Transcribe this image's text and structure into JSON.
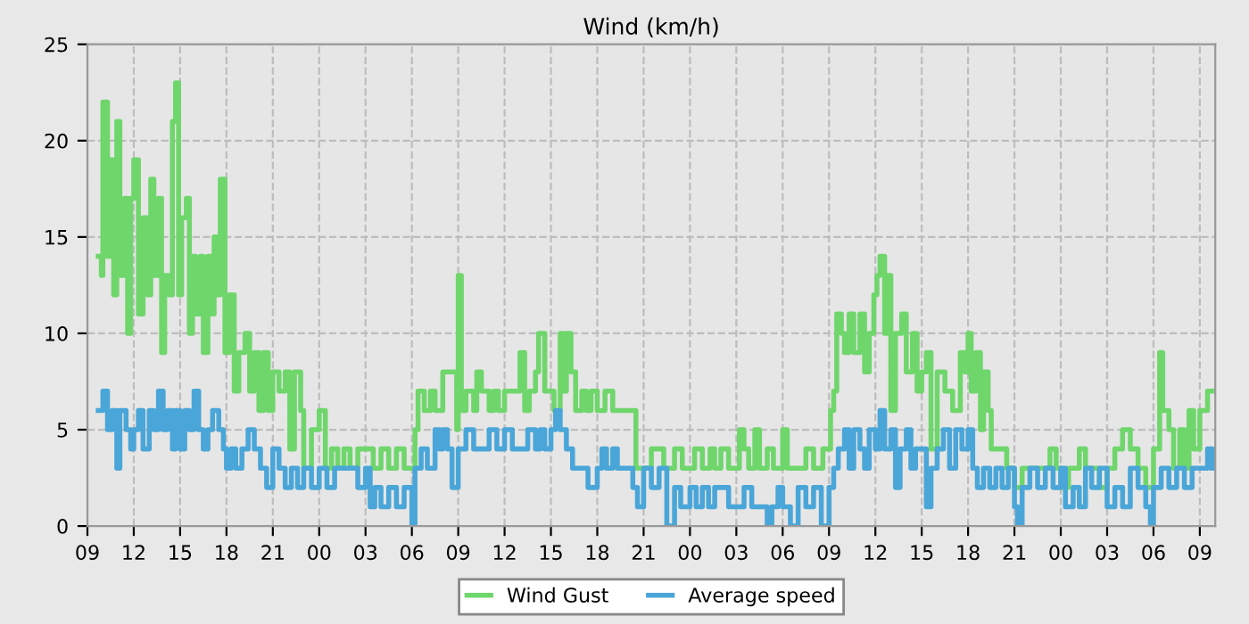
{
  "chart_data": {
    "type": "step",
    "title": "Wind (km/h)",
    "xlim": [
      9,
      82
    ],
    "ylim": [
      0,
      25
    ],
    "yticks": [
      0,
      5,
      10,
      15,
      20,
      25
    ],
    "xticks": [
      {
        "value": 9,
        "label": "09"
      },
      {
        "value": 12,
        "label": "12"
      },
      {
        "value": 15,
        "label": "15"
      },
      {
        "value": 18,
        "label": "18"
      },
      {
        "value": 21,
        "label": "21"
      },
      {
        "value": 24,
        "label": "00"
      },
      {
        "value": 27,
        "label": "03"
      },
      {
        "value": 30,
        "label": "06"
      },
      {
        "value": 33,
        "label": "09"
      },
      {
        "value": 36,
        "label": "12"
      },
      {
        "value": 39,
        "label": "15"
      },
      {
        "value": 42,
        "label": "18"
      },
      {
        "value": 45,
        "label": "21"
      },
      {
        "value": 48,
        "label": "00"
      },
      {
        "value": 51,
        "label": "03"
      },
      {
        "value": 54,
        "label": "06"
      },
      {
        "value": 57,
        "label": "09"
      },
      {
        "value": 60,
        "label": "12"
      },
      {
        "value": 63,
        "label": "15"
      },
      {
        "value": 66,
        "label": "18"
      },
      {
        "value": 69,
        "label": "21"
      },
      {
        "value": 72,
        "label": "00"
      },
      {
        "value": 75,
        "label": "03"
      },
      {
        "value": 78,
        "label": "06"
      },
      {
        "value": 81,
        "label": "09"
      }
    ],
    "grid": true,
    "legend": "bottom",
    "series": [
      {
        "name": "Wind Gust",
        "color": "#6fd66c",
        "x": [
          9.7,
          9.9,
          10.0,
          10.3,
          10.5,
          10.7,
          10.9,
          11.1,
          11.4,
          11.6,
          11.8,
          12.0,
          12.3,
          12.6,
          12.9,
          13.1,
          13.3,
          13.6,
          13.8,
          14.0,
          14.3,
          14.5,
          14.7,
          14.9,
          15.1,
          15.4,
          15.6,
          15.8,
          16.0,
          16.3,
          16.5,
          16.8,
          17.0,
          17.2,
          17.4,
          17.6,
          17.9,
          18.2,
          18.5,
          18.8,
          19.2,
          19.5,
          19.8,
          20.1,
          20.4,
          20.7,
          21.0,
          21.4,
          21.8,
          22.1,
          22.4,
          22.8,
          23.0,
          23.5,
          24.0,
          24.4,
          24.8,
          25.2,
          25.6,
          26.0,
          26.5,
          27.0,
          27.5,
          28.0,
          28.5,
          29.0,
          29.5,
          30.0,
          30.2,
          30.4,
          30.8,
          31.2,
          31.5,
          32.0,
          32.5,
          32.9,
          33.0,
          33.2,
          33.5,
          34.0,
          34.2,
          34.5,
          35.0,
          35.3,
          35.6,
          36.0,
          36.5,
          37.0,
          37.3,
          37.6,
          38.0,
          38.2,
          38.6,
          39.0,
          39.2,
          39.6,
          39.8,
          40.0,
          40.3,
          40.6,
          41.0,
          41.3,
          41.6,
          42.0,
          42.5,
          43.0,
          44.0,
          44.5,
          45.0,
          45.5,
          46.0,
          46.3,
          47.0,
          47.5,
          48.0,
          48.3,
          48.8,
          49.3,
          49.6,
          50.0,
          50.5,
          51.2,
          51.5,
          51.8,
          52.2,
          52.5,
          53.0,
          53.4,
          54.0,
          54.3,
          55.0,
          55.5,
          56.0,
          56.6,
          57.0,
          57.1,
          57.3,
          57.5,
          57.8,
          58.0,
          58.3,
          58.6,
          59.0,
          59.3,
          59.6,
          59.9,
          60.1,
          60.3,
          60.6,
          60.8,
          61.0,
          61.3,
          61.7,
          62.0,
          62.4,
          62.7,
          63.0,
          63.3,
          63.6,
          64.0,
          64.5,
          65.0,
          65.5,
          65.8,
          66.0,
          66.2,
          66.5,
          66.8,
          67.0,
          67.3,
          67.5,
          68.0,
          68.5,
          69.0,
          69.5,
          70.0,
          71.0,
          71.3,
          71.7,
          72.0,
          72.5,
          73.2,
          73.6,
          74.0,
          74.5,
          75.0,
          75.5,
          76.0,
          76.5,
          77.0,
          77.5,
          78.0,
          78.4,
          78.6,
          79.0,
          79.3,
          79.7,
          80.0,
          80.3,
          80.6,
          81.0,
          81.5,
          81.8
        ],
        "values": [
          14,
          13,
          22,
          14,
          19,
          12,
          21,
          13,
          17,
          10,
          17,
          19,
          11,
          16,
          12,
          18,
          13,
          17,
          9,
          13,
          12,
          21,
          23,
          12,
          16,
          17,
          10,
          14,
          11,
          14,
          9,
          14,
          11,
          15,
          12,
          18,
          9,
          12,
          7,
          9,
          10,
          7,
          9,
          6,
          9,
          6,
          8,
          7,
          8,
          4,
          8,
          6,
          3,
          5,
          6,
          3,
          4,
          3,
          4,
          3,
          4,
          4,
          3,
          4,
          3,
          4,
          3,
          3,
          5,
          7,
          6,
          7,
          6,
          8,
          8,
          5,
          13,
          6,
          7,
          6,
          8,
          7,
          6,
          7,
          6,
          7,
          7,
          9,
          6,
          7,
          8,
          10,
          7,
          7,
          6,
          10,
          7,
          10,
          8,
          6,
          7,
          6,
          7,
          6,
          7,
          6,
          6,
          3,
          3,
          4,
          4,
          3,
          4,
          3,
          3,
          4,
          3,
          4,
          3,
          4,
          3,
          5,
          4,
          3,
          5,
          3,
          4,
          3,
          5,
          3,
          3,
          4,
          3,
          4,
          4,
          6,
          7,
          11,
          10,
          9,
          11,
          9,
          11,
          8,
          10,
          12,
          13,
          14,
          10,
          13,
          6,
          10,
          11,
          8,
          10,
          7,
          8,
          9,
          4,
          8,
          7,
          6,
          9,
          8,
          10,
          7,
          9,
          5,
          8,
          6,
          4,
          4,
          3,
          2,
          3,
          3,
          3,
          4,
          3,
          2,
          3,
          4,
          3,
          3,
          2,
          3,
          4,
          5,
          4,
          3,
          2,
          4,
          9,
          6,
          5,
          3,
          5,
          3,
          6,
          4,
          6,
          7,
          7
        ]
      },
      {
        "name": "Average speed",
        "color": "#4aa6d8",
        "x": [
          9.7,
          10.0,
          10.3,
          10.6,
          10.9,
          11.1,
          11.5,
          11.8,
          12.0,
          12.3,
          12.6,
          13.0,
          13.3,
          13.6,
          13.9,
          14.2,
          14.5,
          14.7,
          15.0,
          15.3,
          15.6,
          15.9,
          16.2,
          16.5,
          16.8,
          17.1,
          17.5,
          17.8,
          18.0,
          18.3,
          18.6,
          19.0,
          19.4,
          19.8,
          20.2,
          20.6,
          21.0,
          21.4,
          21.8,
          22.2,
          22.6,
          23.0,
          23.5,
          24.0,
          24.5,
          25.0,
          25.5,
          26.0,
          26.5,
          27.0,
          27.3,
          27.6,
          28.0,
          28.5,
          29.0,
          29.5,
          30.0,
          30.2,
          30.6,
          31.0,
          31.5,
          31.8,
          32.0,
          32.3,
          32.6,
          33.0,
          33.5,
          34.0,
          34.6,
          35.0,
          35.5,
          36.0,
          36.5,
          37.0,
          37.5,
          38.0,
          38.3,
          38.6,
          39.0,
          39.3,
          39.6,
          40.0,
          40.4,
          41.0,
          41.4,
          42.0,
          42.3,
          42.6,
          43.0,
          43.3,
          44.0,
          44.3,
          44.6,
          45.0,
          45.5,
          46.0,
          46.5,
          47.0,
          47.4,
          48.0,
          48.4,
          48.8,
          49.2,
          49.6,
          50.0,
          50.5,
          51.0,
          51.5,
          52.0,
          52.5,
          53.0,
          53.3,
          53.7,
          54.0,
          54.5,
          55.0,
          55.5,
          56.0,
          56.5,
          57.0,
          57.3,
          57.6,
          58.0,
          58.3,
          58.6,
          59.0,
          59.3,
          59.6,
          60.0,
          60.3,
          60.6,
          61.0,
          61.3,
          61.6,
          62.0,
          62.3,
          62.6,
          63.0,
          63.3,
          63.6,
          64.0,
          64.4,
          64.8,
          65.2,
          65.6,
          66.0,
          66.3,
          66.6,
          67.0,
          67.4,
          67.8,
          68.2,
          68.6,
          69.0,
          69.2,
          69.5,
          70.0,
          70.5,
          71.0,
          71.5,
          72.0,
          72.3,
          72.8,
          73.2,
          73.6,
          74.0,
          74.5,
          75.0,
          75.5,
          76.0,
          76.5,
          77.0,
          77.5,
          77.8,
          78.0,
          78.5,
          79.0,
          79.5,
          80.0,
          80.5,
          81.0,
          81.5,
          81.8
        ],
        "values": [
          6,
          7,
          5,
          6,
          3,
          6,
          5,
          4,
          5,
          6,
          4,
          6,
          5,
          7,
          5,
          6,
          4,
          6,
          4,
          6,
          5,
          7,
          5,
          4,
          5,
          6,
          5,
          4,
          3,
          4,
          3,
          4,
          5,
          4,
          3,
          2,
          4,
          3,
          2,
          3,
          2,
          3,
          2,
          3,
          2,
          3,
          3,
          3,
          2,
          3,
          1,
          2,
          1,
          2,
          1,
          2,
          0,
          3,
          4,
          3,
          5,
          4,
          5,
          4,
          2,
          4,
          5,
          4,
          4,
          5,
          4,
          5,
          4,
          4,
          5,
          4,
          5,
          4,
          5,
          6,
          5,
          4,
          3,
          3,
          2,
          3,
          4,
          3,
          4,
          3,
          3,
          2,
          1,
          3,
          2,
          3,
          0,
          2,
          1,
          2,
          1,
          2,
          1,
          2,
          2,
          1,
          1,
          2,
          1,
          1,
          0,
          1,
          2,
          1,
          0,
          2,
          1,
          2,
          0,
          2,
          3,
          4,
          5,
          3,
          5,
          4,
          3,
          5,
          4,
          6,
          4,
          5,
          2,
          4,
          5,
          3,
          4,
          4,
          1,
          3,
          4,
          5,
          3,
          5,
          4,
          5,
          3,
          2,
          3,
          2,
          3,
          2,
          3,
          1,
          0,
          2,
          3,
          2,
          3,
          2,
          3,
          1,
          2,
          1,
          3,
          2,
          3,
          1,
          2,
          1,
          3,
          2,
          1,
          0,
          2,
          3,
          2,
          3,
          2,
          3,
          3,
          4,
          3
        ]
      }
    ]
  }
}
